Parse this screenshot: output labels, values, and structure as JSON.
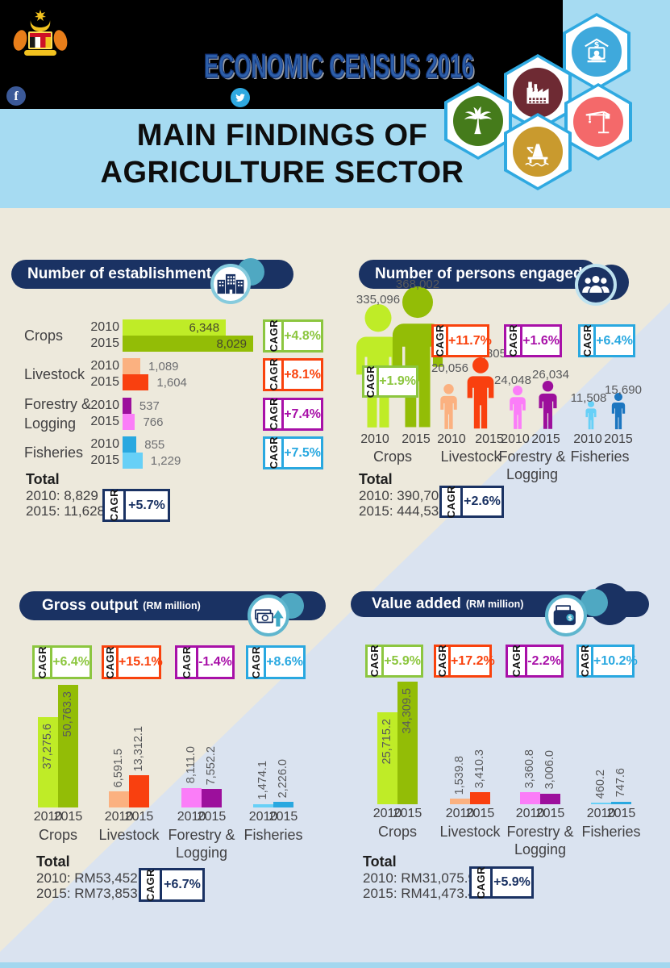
{
  "header": {
    "census_title": "ECONOMIC CENSUS 2016",
    "title_line1": "MAIN FINDINGS OF",
    "title_line2": "AGRICULTURE SECTOR",
    "facebook_label": "f",
    "sector_icons": [
      "services-money-icon",
      "factory-icon",
      "palm-tree-icon",
      "crane-icon",
      "oil-rig-icon"
    ]
  },
  "labels": {
    "cagr": "CAGR",
    "total": "Total",
    "year_2010": "2010",
    "year_2015": "2015"
  },
  "categories": [
    {
      "id": "crops",
      "name": "Crops",
      "name_lines": [
        "Crops"
      ]
    },
    {
      "id": "livestock",
      "name": "Livestock",
      "name_lines": [
        "Livestock"
      ]
    },
    {
      "id": "forestry",
      "name": "Forestry & Logging",
      "name_lines": [
        "Forestry &",
        "Logging"
      ]
    },
    {
      "id": "fisheries",
      "name": "Fisheries",
      "name_lines": [
        "Fisheries"
      ]
    }
  ],
  "colors": {
    "navy": "#1A3263",
    "teal": "#3FA9C6",
    "hex_border": "#2FA9E1",
    "black_bar": "#000000",
    "blue_band": "#A6DBF2",
    "cream": "#EDE9DC",
    "diag_blue": "#DAE3F0",
    "crops_2010": "#BFEC27",
    "crops_2015": "#93BD06",
    "crops_accent": "#8CC63F",
    "livestock_2010": "#FBB180",
    "livestock_2015": "#F9400F",
    "livestock_accent": "#F9420D",
    "forestry_dark": "#9C0F9C",
    "forestry_light": "#FB7DF8",
    "forestry_accent": "#A810A8",
    "fisheries_dark": "#29A8E0",
    "fisheries_light": "#67D0F7",
    "fisheries_deep": "#1C76C0",
    "fisheries_accent": "#29A8E0",
    "sector_circle_services": "#3FA9DC",
    "sector_circle_factory": "#6E2A33",
    "sector_circle_palm": "#457B1B",
    "sector_circle_crane": "#F4696A",
    "sector_circle_rig": "#C99A2E"
  },
  "panels": {
    "establishment": {
      "title": "Number of establishment",
      "values": [
        [
          "6,348",
          "8,029"
        ],
        [
          "1,089",
          "1,604"
        ],
        [
          "537",
          "766"
        ],
        [
          "855",
          "1,229"
        ]
      ],
      "cagr": [
        "+4.8%",
        "+8.1%",
        "+7.4%",
        "+7.5%"
      ],
      "total": {
        "heading": "Total",
        "line_2010": "2010: 8,829",
        "line_2015": "2015: 11,628",
        "cagr": "+5.7%"
      }
    },
    "persons": {
      "title": "Number of persons engaged",
      "values": [
        [
          "335,096",
          "368,002"
        ],
        [
          "20,056",
          "34,805"
        ],
        [
          "24,048",
          "26,034"
        ],
        [
          "11,508",
          "15,690"
        ]
      ],
      "cagr": [
        "+1.9%",
        "+11.7%",
        "+1.6%",
        "+6.4%"
      ],
      "total": {
        "heading": "Total",
        "line_2010": "2010: 390,708",
        "line_2015": "2015: 444,531",
        "cagr": "+2.6%"
      }
    },
    "gross_output": {
      "title": "Gross output",
      "unit": "(RM million)",
      "values": [
        [
          "37,275.6",
          "50,763.3"
        ],
        [
          "6,591.5",
          "13,312.1"
        ],
        [
          "8,111.0",
          "7,552.2"
        ],
        [
          "1,474.1",
          "2,226.0"
        ]
      ],
      "cagr": [
        "+6.4%",
        "+15.1%",
        "-1.4%",
        "+8.6%"
      ],
      "total": {
        "heading": "Total",
        "line_2010": "2010: RM53,452.1",
        "line_2015": "2015: RM73,853.6",
        "cagr": "+6.7%"
      }
    },
    "value_added": {
      "title": "Value added",
      "unit": "(RM million)",
      "values": [
        [
          "25,715.2",
          "34,309.5"
        ],
        [
          "1,539.8",
          "3,410.3"
        ],
        [
          "3,360.8",
          "3,006.0"
        ],
        [
          "460.2",
          "747.6"
        ]
      ],
      "cagr": [
        "+5.9%",
        "+17.2%",
        "-2.2%",
        "+10.2%"
      ],
      "total": {
        "heading": "Total",
        "line_2010": "2010: RM31,075.9",
        "line_2015": "2015: RM41,473.4",
        "cagr": "+5.9%"
      }
    }
  },
  "chart_data": [
    {
      "id": "number_of_establishment",
      "type": "bar",
      "orientation": "horizontal",
      "title": "Number of establishment",
      "categories": [
        "Crops",
        "Livestock",
        "Forestry & Logging",
        "Fisheries"
      ],
      "series": [
        {
          "name": "2010",
          "values": [
            6348,
            1089,
            537,
            855
          ]
        },
        {
          "name": "2015",
          "values": [
            8029,
            1604,
            766,
            1229
          ]
        }
      ],
      "cagr_pct": [
        4.8,
        8.1,
        7.4,
        7.5
      ],
      "total": {
        "2010": 8829,
        "2015": 11628,
        "cagr_pct": 5.7
      }
    },
    {
      "id": "number_of_persons_engaged",
      "type": "pictogram",
      "title": "Number of persons engaged",
      "categories": [
        "Crops",
        "Livestock",
        "Forestry & Logging",
        "Fisheries"
      ],
      "series": [
        {
          "name": "2010",
          "values": [
            335096,
            20056,
            24048,
            11508
          ]
        },
        {
          "name": "2015",
          "values": [
            368002,
            34805,
            26034,
            15690
          ]
        }
      ],
      "cagr_pct": [
        1.9,
        11.7,
        1.6,
        6.4
      ],
      "total": {
        "2010": 390708,
        "2015": 444531,
        "cagr_pct": 2.6
      }
    },
    {
      "id": "gross_output_rm_million",
      "type": "bar",
      "orientation": "vertical",
      "title": "Gross output (RM million)",
      "categories": [
        "Crops",
        "Livestock",
        "Forestry & Logging",
        "Fisheries"
      ],
      "series": [
        {
          "name": "2010",
          "values": [
            37275.6,
            6591.5,
            8111.0,
            1474.1
          ]
        },
        {
          "name": "2015",
          "values": [
            50763.3,
            13312.1,
            7552.2,
            2226.0
          ]
        }
      ],
      "cagr_pct": [
        6.4,
        15.1,
        -1.4,
        8.6
      ],
      "total": {
        "2010": 53452.1,
        "2015": 73853.6,
        "cagr_pct": 6.7
      }
    },
    {
      "id": "value_added_rm_million",
      "type": "bar",
      "orientation": "vertical",
      "title": "Value added (RM million)",
      "categories": [
        "Crops",
        "Livestock",
        "Forestry & Logging",
        "Fisheries"
      ],
      "series": [
        {
          "name": "2010",
          "values": [
            25715.2,
            1539.8,
            3360.8,
            460.2
          ]
        },
        {
          "name": "2015",
          "values": [
            34309.5,
            3410.3,
            3006.0,
            747.6
          ]
        }
      ],
      "cagr_pct": [
        5.9,
        17.2,
        -2.2,
        10.2
      ],
      "total": {
        "2010": 31075.9,
        "2015": 41473.4,
        "cagr_pct": 5.9
      }
    }
  ]
}
